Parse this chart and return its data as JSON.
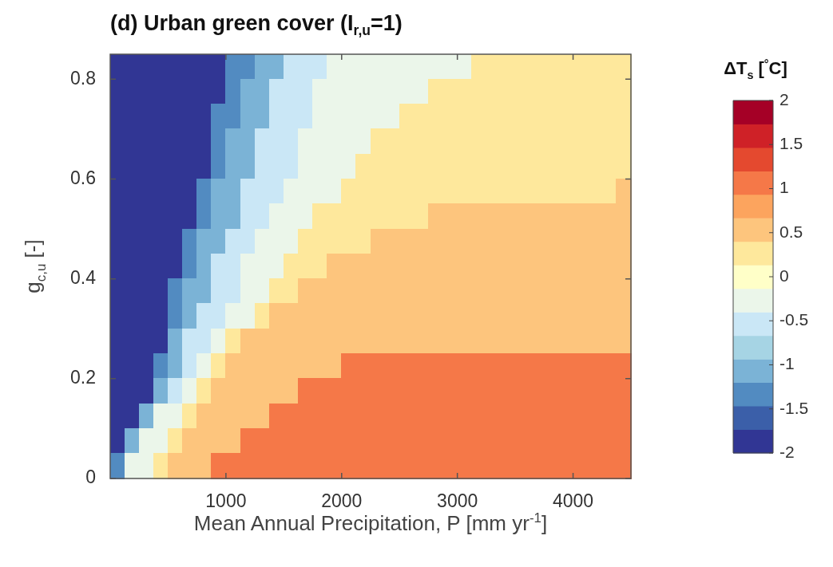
{
  "chart_data": {
    "type": "heatmap",
    "title": "(d) Urban green cover (I$_{r,u}$=1)",
    "xlabel": "Mean Annual Precipitation, P [mm yr$^{-1}$]",
    "ylabel": "g$_{c,u}$ [-]",
    "clabel": "ΔT$_{s}$ [$^{°}$C]",
    "x": [
      62.5,
      187.5,
      312.5,
      437.5,
      562.5,
      687.5,
      812.5,
      937.5,
      1062.5,
      1187.5,
      1312.5,
      1437.5,
      1562.5,
      1687.5,
      1812.5,
      1937.5,
      2062.5,
      2187.5,
      2312.5,
      2437.5,
      2562.5,
      2687.5,
      2812.5,
      2937.5,
      3062.5,
      3187.5,
      3312.5,
      3437.5,
      3562.5,
      3687.5,
      3812.5,
      3937.5,
      4062.5,
      4187.5,
      4312.5,
      4437.5
    ],
    "y": [
      0.825,
      0.775,
      0.725,
      0.675,
      0.625,
      0.575,
      0.525,
      0.475,
      0.425,
      0.375,
      0.325,
      0.275,
      0.225,
      0.175,
      0.125,
      0.075,
      0.025
    ],
    "xlim": [
      0,
      4500
    ],
    "xticks": [
      1000,
      2000,
      3000,
      4000
    ],
    "ylim": [
      0,
      0.85
    ],
    "yticks": [
      0,
      0.2,
      0.4,
      0.6,
      0.8
    ],
    "clim": [
      -2,
      2
    ],
    "cticks": [
      -2,
      -1.5,
      -1,
      -0.5,
      0,
      0.5,
      1,
      1.5,
      2
    ],
    "colors": [
      "#313694",
      "#3b5fa9",
      "#528bc1",
      "#7bb3d6",
      "#a6d4e4",
      "#cae7f6",
      "#ebf6ea",
      "#ffffc8",
      "#fee89c",
      "#fdc57d",
      "#fca45e",
      "#f57848",
      "#e4492f",
      "#cf2127",
      "#a50026"
    ],
    "cells": [
      [
        -1.87,
        -1.87,
        -1.87,
        -1.87,
        -1.87,
        -1.87,
        -1.87,
        -1.87,
        -1.33,
        -1.33,
        -1.07,
        -1.07,
        -0.53,
        -0.53,
        -0.53,
        -0.27,
        -0.27,
        -0.27,
        -0.27,
        -0.27,
        -0.27,
        -0.27,
        -0.27,
        -0.27,
        -0.27,
        0.27,
        0.27,
        0.27,
        0.27,
        0.27,
        0.27,
        0.27,
        0.27,
        0.27,
        0.27,
        0.27
      ],
      [
        -1.87,
        -1.87,
        -1.87,
        -1.87,
        -1.87,
        -1.87,
        -1.87,
        -1.87,
        -1.33,
        -1.07,
        -1.07,
        -0.53,
        -0.53,
        -0.53,
        -0.27,
        -0.27,
        -0.27,
        -0.27,
        -0.27,
        -0.27,
        -0.27,
        -0.27,
        0.27,
        0.27,
        0.27,
        0.27,
        0.27,
        0.27,
        0.27,
        0.27,
        0.27,
        0.27,
        0.27,
        0.27,
        0.27,
        0.27
      ],
      [
        -1.87,
        -1.87,
        -1.87,
        -1.87,
        -1.87,
        -1.87,
        -1.87,
        -1.33,
        -1.33,
        -1.07,
        -1.07,
        -0.53,
        -0.53,
        -0.53,
        -0.27,
        -0.27,
        -0.27,
        -0.27,
        -0.27,
        -0.27,
        0.27,
        0.27,
        0.27,
        0.27,
        0.27,
        0.27,
        0.27,
        0.27,
        0.27,
        0.27,
        0.27,
        0.27,
        0.27,
        0.27,
        0.27,
        0.27
      ],
      [
        -1.87,
        -1.87,
        -1.87,
        -1.87,
        -1.87,
        -1.87,
        -1.87,
        -1.33,
        -1.07,
        -1.07,
        -0.53,
        -0.53,
        -0.53,
        -0.27,
        -0.27,
        -0.27,
        -0.27,
        -0.27,
        0.27,
        0.27,
        0.27,
        0.27,
        0.27,
        0.27,
        0.27,
        0.27,
        0.27,
        0.27,
        0.27,
        0.27,
        0.27,
        0.27,
        0.27,
        0.27,
        0.27,
        0.27
      ],
      [
        -1.87,
        -1.87,
        -1.87,
        -1.87,
        -1.87,
        -1.87,
        -1.87,
        -1.33,
        -1.07,
        -1.07,
        -0.53,
        -0.53,
        -0.53,
        -0.27,
        -0.27,
        -0.27,
        -0.27,
        0.27,
        0.27,
        0.27,
        0.27,
        0.27,
        0.27,
        0.27,
        0.27,
        0.27,
        0.27,
        0.27,
        0.27,
        0.27,
        0.27,
        0.27,
        0.27,
        0.27,
        0.27,
        0.27
      ],
      [
        -1.87,
        -1.87,
        -1.87,
        -1.87,
        -1.87,
        -1.87,
        -1.33,
        -1.07,
        -1.07,
        -0.53,
        -0.53,
        -0.53,
        -0.27,
        -0.27,
        -0.27,
        -0.27,
        0.27,
        0.27,
        0.27,
        0.27,
        0.27,
        0.27,
        0.27,
        0.27,
        0.27,
        0.27,
        0.27,
        0.27,
        0.27,
        0.27,
        0.27,
        0.27,
        0.27,
        0.27,
        0.27,
        0.53
      ],
      [
        -1.87,
        -1.87,
        -1.87,
        -1.87,
        -1.87,
        -1.87,
        -1.33,
        -1.07,
        -1.07,
        -0.53,
        -0.53,
        -0.27,
        -0.27,
        -0.27,
        0.27,
        0.27,
        0.27,
        0.27,
        0.27,
        0.27,
        0.27,
        0.27,
        0.53,
        0.53,
        0.53,
        0.53,
        0.53,
        0.53,
        0.53,
        0.53,
        0.53,
        0.53,
        0.53,
        0.53,
        0.53,
        0.53
      ],
      [
        -1.87,
        -1.87,
        -1.87,
        -1.87,
        -1.87,
        -1.33,
        -1.07,
        -1.07,
        -0.53,
        -0.53,
        -0.27,
        -0.27,
        -0.27,
        0.27,
        0.27,
        0.27,
        0.27,
        0.27,
        0.53,
        0.53,
        0.53,
        0.53,
        0.53,
        0.53,
        0.53,
        0.53,
        0.53,
        0.53,
        0.53,
        0.53,
        0.53,
        0.53,
        0.53,
        0.53,
        0.53,
        0.53
      ],
      [
        -1.87,
        -1.87,
        -1.87,
        -1.87,
        -1.87,
        -1.33,
        -1.07,
        -0.53,
        -0.53,
        -0.27,
        -0.27,
        -0.27,
        0.27,
        0.27,
        0.27,
        0.53,
        0.53,
        0.53,
        0.53,
        0.53,
        0.53,
        0.53,
        0.53,
        0.53,
        0.53,
        0.53,
        0.53,
        0.53,
        0.53,
        0.53,
        0.53,
        0.53,
        0.53,
        0.53,
        0.53,
        0.53
      ],
      [
        -1.87,
        -1.87,
        -1.87,
        -1.87,
        -1.33,
        -1.07,
        -1.07,
        -0.53,
        -0.53,
        -0.27,
        -0.27,
        0.27,
        0.27,
        0.53,
        0.53,
        0.53,
        0.53,
        0.53,
        0.53,
        0.53,
        0.53,
        0.53,
        0.53,
        0.53,
        0.53,
        0.53,
        0.53,
        0.53,
        0.53,
        0.53,
        0.53,
        0.53,
        0.53,
        0.53,
        0.53,
        0.53
      ],
      [
        -1.87,
        -1.87,
        -1.87,
        -1.87,
        -1.33,
        -1.07,
        -0.53,
        -0.53,
        -0.27,
        -0.27,
        0.27,
        0.53,
        0.53,
        0.53,
        0.53,
        0.53,
        0.53,
        0.53,
        0.53,
        0.53,
        0.53,
        0.53,
        0.53,
        0.53,
        0.53,
        0.53,
        0.53,
        0.53,
        0.53,
        0.53,
        0.53,
        0.53,
        0.53,
        0.53,
        0.53,
        0.53
      ],
      [
        -1.87,
        -1.87,
        -1.87,
        -1.87,
        -1.07,
        -0.53,
        -0.53,
        -0.27,
        0.27,
        0.53,
        0.53,
        0.53,
        0.53,
        0.53,
        0.53,
        0.53,
        0.53,
        0.53,
        0.53,
        0.53,
        0.53,
        0.53,
        0.53,
        0.53,
        0.53,
        0.53,
        0.53,
        0.53,
        0.53,
        0.53,
        0.53,
        0.53,
        0.53,
        0.53,
        0.53,
        0.53
      ],
      [
        -1.87,
        -1.87,
        -1.87,
        -1.33,
        -1.07,
        -0.53,
        -0.27,
        0.27,
        0.53,
        0.53,
        0.53,
        0.53,
        0.53,
        0.53,
        0.53,
        0.53,
        1.07,
        1.07,
        1.07,
        1.07,
        1.07,
        1.07,
        1.07,
        1.07,
        1.07,
        1.07,
        1.07,
        1.07,
        1.07,
        1.07,
        1.07,
        1.07,
        1.07,
        1.07,
        1.07,
        1.07
      ],
      [
        -1.87,
        -1.87,
        -1.87,
        -1.07,
        -0.53,
        -0.27,
        0.27,
        0.53,
        0.53,
        0.53,
        0.53,
        0.53,
        0.53,
        1.07,
        1.07,
        1.07,
        1.07,
        1.07,
        1.07,
        1.07,
        1.07,
        1.07,
        1.07,
        1.07,
        1.07,
        1.07,
        1.07,
        1.07,
        1.07,
        1.07,
        1.07,
        1.07,
        1.07,
        1.07,
        1.07,
        1.07
      ],
      [
        -1.87,
        -1.87,
        -1.07,
        -0.27,
        -0.27,
        0.27,
        0.53,
        0.53,
        0.53,
        0.53,
        0.53,
        1.07,
        1.07,
        1.07,
        1.07,
        1.07,
        1.07,
        1.07,
        1.07,
        1.07,
        1.07,
        1.07,
        1.07,
        1.07,
        1.07,
        1.07,
        1.07,
        1.07,
        1.07,
        1.07,
        1.07,
        1.07,
        1.07,
        1.07,
        1.07,
        1.07
      ],
      [
        -1.87,
        -1.07,
        -0.27,
        -0.27,
        0.27,
        0.53,
        0.53,
        0.53,
        0.53,
        1.07,
        1.07,
        1.07,
        1.07,
        1.07,
        1.07,
        1.07,
        1.07,
        1.07,
        1.07,
        1.07,
        1.07,
        1.07,
        1.07,
        1.07,
        1.07,
        1.07,
        1.07,
        1.07,
        1.07,
        1.07,
        1.07,
        1.07,
        1.07,
        1.07,
        1.07,
        1.07
      ],
      [
        -1.33,
        -0.27,
        -0.27,
        0.27,
        0.53,
        0.53,
        0.53,
        1.07,
        1.07,
        1.07,
        1.07,
        1.07,
        1.07,
        1.07,
        1.07,
        1.07,
        1.07,
        1.07,
        1.07,
        1.07,
        1.07,
        1.07,
        1.07,
        1.07,
        1.07,
        1.07,
        1.07,
        1.07,
        1.07,
        1.07,
        1.07,
        1.07,
        1.07,
        1.07,
        1.07,
        1.07
      ]
    ]
  }
}
